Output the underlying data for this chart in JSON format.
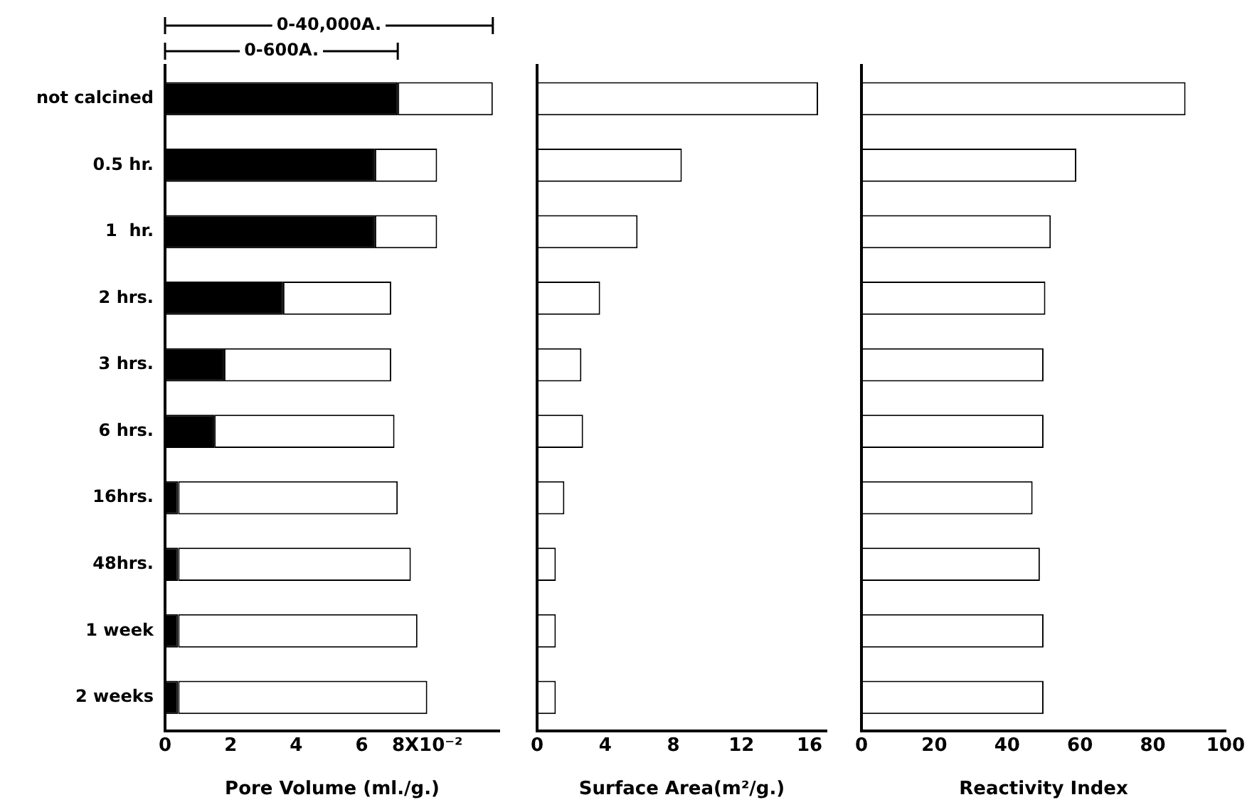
{
  "chart_data": [
    {
      "type": "bar",
      "orientation": "horizontal",
      "stacked": true,
      "categories": [
        "not calcined",
        "0.5 hr.",
        "1  hr.",
        "2 hrs.",
        "3 hrs.",
        "6 hrs.",
        "16hrs.",
        "48hrs.",
        "1 week",
        "2 weeks"
      ],
      "series": [
        {
          "color": "#000000",
          "values": [
            7.1,
            6.4,
            6.4,
            3.6,
            1.8,
            1.5,
            0.4,
            0.4,
            0.4,
            0.4
          ]
        },
        {
          "color": "#ffffff",
          "values": [
            2.9,
            1.9,
            1.9,
            3.3,
            5.1,
            5.5,
            6.7,
            7.1,
            7.3,
            7.6
          ]
        }
      ],
      "annotations": [
        "0-40,000A.",
        "0-600A."
      ],
      "xlim": [
        0,
        10.2
      ],
      "xticks": [
        0,
        2,
        4,
        6,
        {
          "value": 8,
          "label": "8X10⁻²"
        }
      ],
      "xlabel": "Pore Volume (ml./g.)"
    },
    {
      "type": "bar",
      "orientation": "horizontal",
      "categories": [
        null,
        null,
        null,
        null,
        null,
        null,
        null,
        null,
        null,
        null
      ],
      "values": [
        16.5,
        8.5,
        5.9,
        3.7,
        2.6,
        2.7,
        1.6,
        1.1,
        1.1,
        1.1
      ],
      "color": "#ffffff",
      "xlim": [
        0,
        17
      ],
      "xticks": [
        0,
        4,
        8,
        12,
        16
      ],
      "xlabel": "Surface Area(m²/g.)",
      "tick_labels": "x"
    },
    {
      "type": "bar",
      "orientation": "horizontal",
      "categories": [
        null,
        null,
        null,
        null,
        null,
        null,
        null,
        null,
        null,
        null
      ],
      "values": [
        89,
        59,
        52,
        50.5,
        50,
        50,
        47,
        49,
        50,
        50
      ],
      "color": "#ffffff",
      "xlim": [
        0,
        100
      ],
      "xticks": [
        0,
        20,
        40,
        60,
        80,
        100
      ],
      "xlabel": "Reactivity Index",
      "tick_labels": "x"
    }
  ]
}
